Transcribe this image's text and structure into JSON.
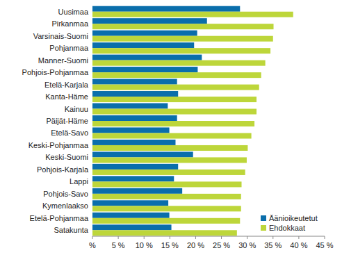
{
  "chart_data": {
    "type": "bar",
    "orientation": "horizontal",
    "categories": [
      "Uusimaa",
      "Pirkanmaa",
      "Varsinais-Suomi",
      "Pohjanmaa",
      "Manner-Suomi",
      "Pohjois-Pohjanmaa",
      "Etelä-Karjala",
      "Kanta-Häme",
      "Kainuu",
      "Päijät-Häme",
      "Etelä-Savo",
      "Keski-Pohjanmaa",
      "Keski-Suomi",
      "Pohjois-Karjala",
      "Lappi",
      "Pohjois-Savo",
      "Kymenlaakso",
      "Etelä-Pohjanmaa",
      "Satakunta"
    ],
    "series": [
      {
        "name": "Äänioikeutetut",
        "color": "#0a6eab",
        "values": [
          28.6,
          22.2,
          20.3,
          19.7,
          21.2,
          20.4,
          16.4,
          16.6,
          14.6,
          16.4,
          14.9,
          16.1,
          19.5,
          16.6,
          15.8,
          17.4,
          14.7,
          14.9,
          15.3
        ]
      },
      {
        "name": "Ehdokkaat",
        "color": "#bdd63a",
        "values": [
          38.9,
          35.1,
          35.0,
          34.5,
          33.5,
          32.7,
          32.3,
          31.8,
          31.8,
          31.4,
          30.8,
          30.1,
          29.9,
          29.6,
          28.9,
          28.8,
          28.8,
          28.6,
          28.0
        ]
      }
    ],
    "xlim": [
      0,
      45
    ],
    "xticks": [
      {
        "value": 0,
        "label": "%"
      },
      {
        "value": 5,
        "label": "5 %"
      },
      {
        "value": 10,
        "label": "10 %"
      },
      {
        "value": 15,
        "label": "15 %"
      },
      {
        "value": 20,
        "label": "20 %"
      },
      {
        "value": 25,
        "label": "25 %"
      },
      {
        "value": 30,
        "label": "30 %"
      },
      {
        "value": 35,
        "label": "35 %"
      },
      {
        "value": 40,
        "label": "40 %"
      },
      {
        "value": 45,
        "label": "45 %"
      }
    ],
    "grid": false,
    "legend": "bottom-right"
  }
}
